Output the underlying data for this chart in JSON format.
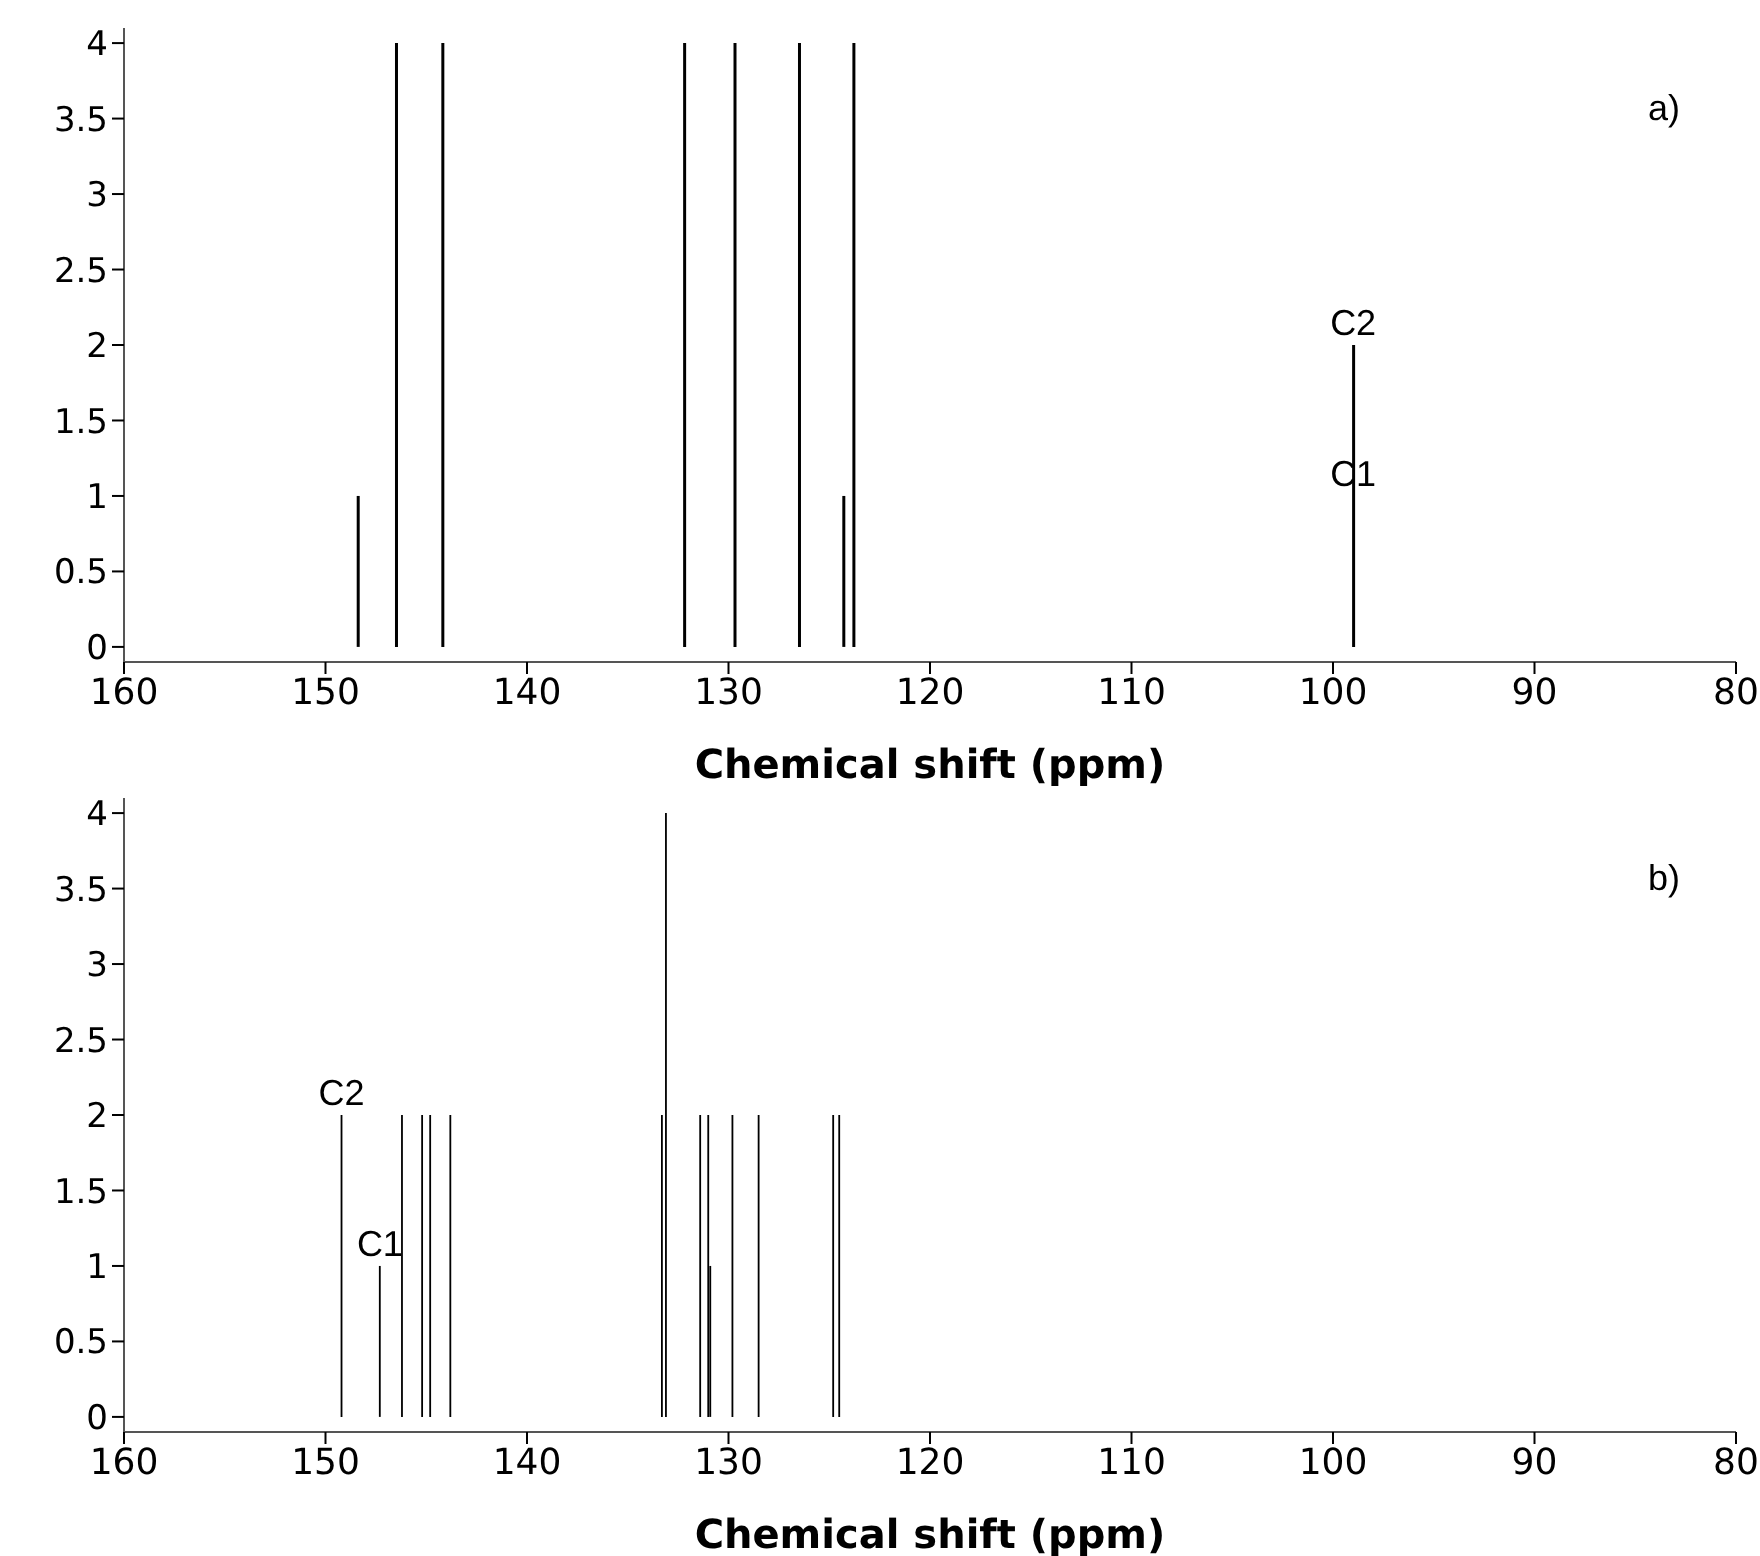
{
  "chart_data": [
    {
      "type": "bar",
      "xlabel": "Chemical shift (ppm)",
      "annotations": [
        "a)",
        {
          "text": "C2",
          "x": 99,
          "y": 2
        },
        {
          "text": "C1",
          "x": 99,
          "y": 1
        }
      ],
      "x": [
        148.4,
        146.5,
        144.2,
        132.2,
        129.7,
        126.5,
        124.3,
        123.8,
        99.0
      ],
      "values": [
        1,
        4,
        4,
        4,
        4,
        4,
        1,
        4,
        2
      ],
      "color": "#000000",
      "xlim": [
        160,
        80
      ],
      "xticks": [
        160,
        150,
        140,
        130,
        120,
        110,
        100,
        90,
        80
      ],
      "ylim": [
        -0.1,
        4.1
      ],
      "yticks": [
        0,
        0.5,
        1,
        1.5,
        2,
        2.5,
        3,
        3.5,
        4
      ],
      "grid": false,
      "legend": false
    },
    {
      "type": "bar",
      "xlabel": "Chemical shift (ppm)",
      "annotations": [
        "b)",
        {
          "text": "C2",
          "x": 149.2,
          "y": 2
        },
        {
          "text": "C1",
          "x": 147.3,
          "y": 1
        }
      ],
      "x": [
        149.2,
        147.3,
        146.2,
        145.2,
        144.8,
        143.8,
        133.3,
        133.1,
        131.4,
        131.0,
        130.9,
        129.8,
        128.5,
        124.8,
        124.5
      ],
      "values": [
        2,
        1,
        2,
        2,
        2,
        2,
        2,
        4,
        2,
        2,
        1,
        2,
        2,
        2,
        2
      ],
      "color": "#000000",
      "xlim": [
        160,
        80
      ],
      "xticks": [
        160,
        150,
        140,
        130,
        120,
        110,
        100,
        90,
        80
      ],
      "ylim": [
        -0.1,
        4.1
      ],
      "yticks": [
        0,
        0.5,
        1,
        1.5,
        2,
        2.5,
        3,
        3.5,
        4
      ],
      "grid": false,
      "legend": false
    }
  ]
}
